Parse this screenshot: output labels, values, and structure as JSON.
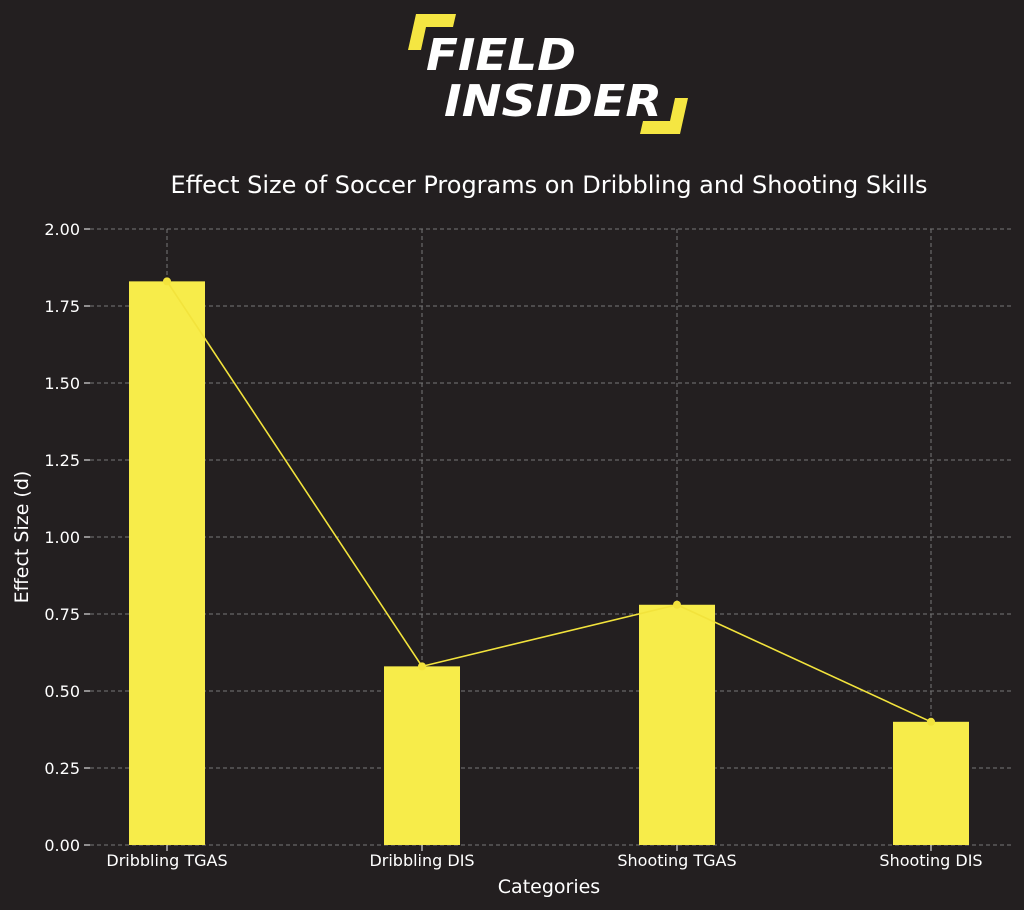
{
  "logo": {
    "line1": "FIELD",
    "line2": "INSIDER",
    "accent_color": "#f5e642"
  },
  "chart_data": {
    "type": "bar",
    "title": "Effect Size of Soccer Programs on Dribbling and Shooting Skills",
    "xlabel": "Categories",
    "ylabel": "Effect Size (d)",
    "categories": [
      "Dribbling TGAS",
      "Dribbling DIS",
      "Shooting TGAS",
      "Shooting DIS"
    ],
    "values": [
      1.83,
      0.58,
      0.78,
      0.4
    ],
    "ylim": [
      0,
      2.0
    ],
    "yticks": [
      "0.00",
      "0.25",
      "0.50",
      "0.75",
      "1.00",
      "1.25",
      "1.50",
      "1.75",
      "2.00"
    ],
    "overlay_line": true,
    "grid": true,
    "bar_color": "#f7ec4a",
    "line_color": "#f2e33c",
    "grid_color": "#777777",
    "background_color": "#231f20"
  }
}
